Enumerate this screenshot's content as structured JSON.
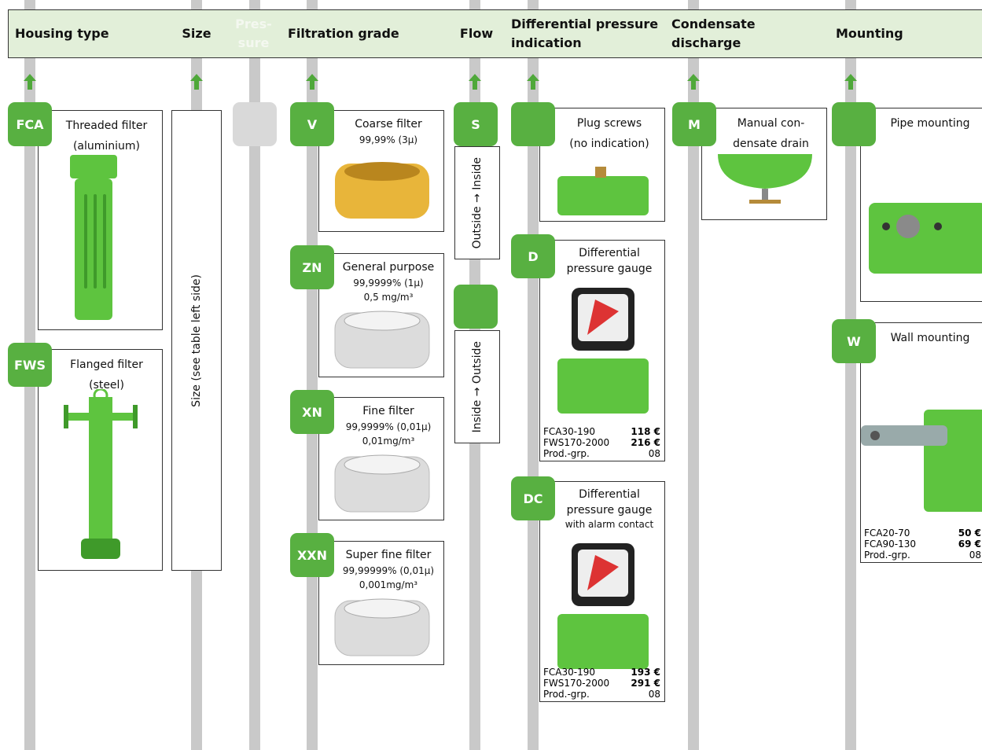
{
  "header": {
    "columns": [
      [
        "Housing type"
      ],
      [
        "Size"
      ],
      [
        "Pres-",
        "sure"
      ],
      [
        "Filtration grade"
      ],
      [
        "Flow"
      ],
      [
        "Differential pressure",
        "indication"
      ],
      [
        "Condensate",
        "discharge"
      ],
      [
        "Mounting"
      ]
    ]
  },
  "options": [
    {
      "code": "FCA",
      "lines": [
        "Threaded filter",
        "(aluminium)"
      ]
    },
    {
      "code": "FWS",
      "lines": [
        "Flanged filter",
        "(steel)"
      ]
    },
    {
      "vertical": "Size (see table left side)"
    },
    {
      "code": "V",
      "lines": [
        "Coarse filter",
        "99,99% (3µ)"
      ]
    },
    {
      "code": "ZN",
      "lines": [
        "General purpose",
        "99,9999% (1µ)",
        "0,5 mg/m³"
      ]
    },
    {
      "code": "XN",
      "lines": [
        "Fine filter",
        "99,9999% (0,01µ)",
        "0,01mg/m³"
      ]
    },
    {
      "code": "XXN",
      "lines": [
        "Super fine filter",
        "99,99999% (0,01µ)",
        "0,001mg/m³"
      ]
    },
    {
      "code": "S",
      "vertical": "Outside → Inside"
    },
    {
      "vertical": "Inside → Outside"
    },
    {
      "lines": [
        "Plug screws",
        "(no indication)"
      ]
    },
    {
      "code": "D",
      "lines": [
        "Differential",
        "pressure gauge"
      ],
      "prices": [
        [
          "FCA30-190",
          "118 €"
        ],
        [
          "FWS170-2000",
          "216 €"
        ],
        [
          "Prod.-grp.",
          "08"
        ]
      ]
    },
    {
      "code": "DC",
      "lines": [
        "Differential",
        "pressure gauge",
        "with alarm contact"
      ],
      "prices": [
        [
          "FCA30-190",
          "193 €"
        ],
        [
          "FWS170-2000",
          "291 €"
        ],
        [
          "Prod.-grp.",
          "08"
        ]
      ]
    },
    {
      "code": "M",
      "lines": [
        "Manual con-",
        "densate drain"
      ]
    },
    {
      "lines": [
        "Pipe mounting"
      ]
    },
    {
      "code": "W",
      "lines": [
        "Wall mounting"
      ],
      "prices": [
        [
          "FCA20-70",
          "50 €"
        ],
        [
          "FCA90-130",
          "69 €"
        ],
        [
          "Prod.-grp.",
          "08"
        ]
      ]
    }
  ]
}
